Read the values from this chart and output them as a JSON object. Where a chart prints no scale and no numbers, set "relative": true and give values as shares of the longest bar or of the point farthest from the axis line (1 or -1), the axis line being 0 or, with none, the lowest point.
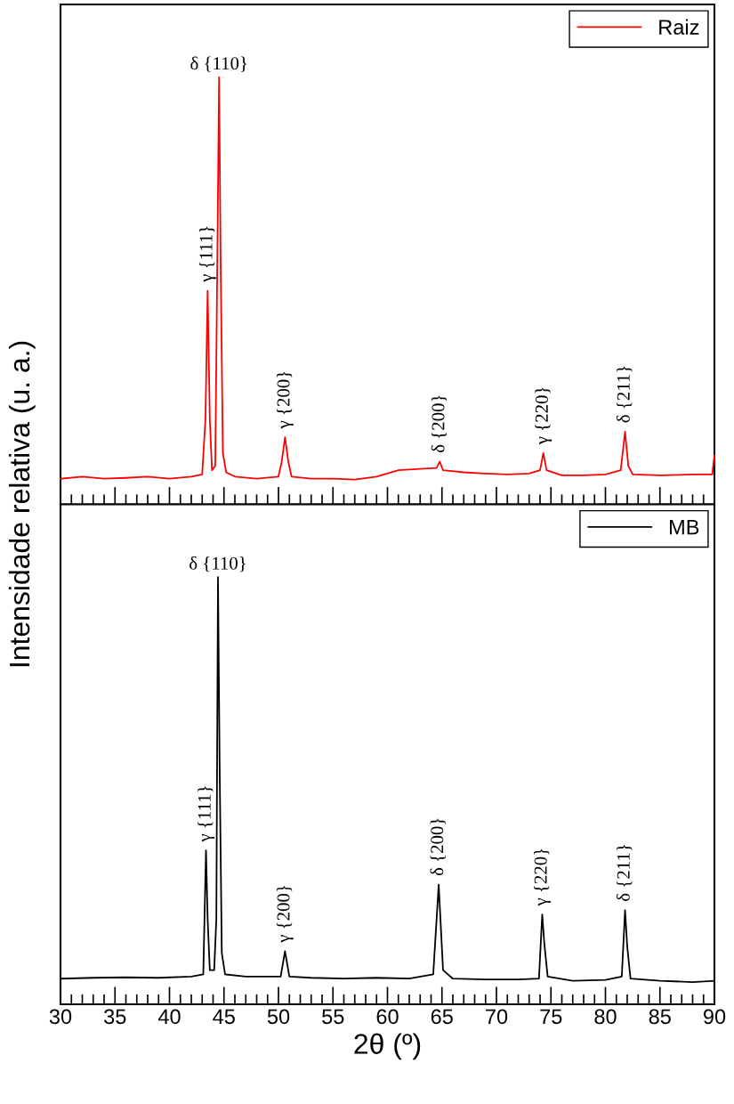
{
  "chart_data": [
    {
      "type": "line",
      "relative": true,
      "ylabel": "Intensidade relativa (u. a.)",
      "xlim": [
        30,
        90
      ],
      "xticks": [
        30,
        35,
        40,
        45,
        50,
        55,
        60,
        65,
        70,
        75,
        80,
        85,
        90
      ],
      "tick_labels": false,
      "legend": "top right",
      "grid": false,
      "series": [
        {
          "name": "Raiz",
          "color": "#ff0000",
          "x": [
            30,
            32,
            34,
            36,
            38,
            40,
            42,
            43.0,
            43.3,
            43.5,
            43.7,
            43.9,
            44.2,
            44.4,
            44.55,
            44.7,
            44.9,
            45.2,
            46,
            48,
            50,
            50.3,
            50.6,
            50.9,
            51.2,
            53,
            55,
            57,
            59,
            61,
            63,
            64.5,
            64.8,
            65.1,
            67,
            69,
            71,
            73,
            74.0,
            74.3,
            74.6,
            76,
            78,
            80,
            81.4,
            81.8,
            82.1,
            82.5,
            85,
            88,
            89.8,
            90
          ],
          "values": [
            0.06,
            0.065,
            0.06,
            0.062,
            0.065,
            0.06,
            0.065,
            0.07,
            0.2,
            0.5,
            0.2,
            0.08,
            0.09,
            0.6,
            1.0,
            0.55,
            0.12,
            0.075,
            0.065,
            0.06,
            0.065,
            0.1,
            0.157,
            0.1,
            0.065,
            0.06,
            0.06,
            0.058,
            0.065,
            0.08,
            0.083,
            0.085,
            0.1,
            0.08,
            0.075,
            0.072,
            0.07,
            0.072,
            0.08,
            0.12,
            0.08,
            0.068,
            0.068,
            0.07,
            0.08,
            0.17,
            0.09,
            0.07,
            0.068,
            0.07,
            0.07,
            0.115
          ]
        }
      ],
      "annotations": [
        {
          "text": "γ {111}",
          "x": 43.5,
          "y": 0.5
        },
        {
          "text": "δ {110}",
          "x": 44.55,
          "y": 1.0
        },
        {
          "text": "γ {200}",
          "x": 50.6,
          "y": 0.157
        },
        {
          "text": "δ {200}",
          "x": 64.8,
          "y": 0.1
        },
        {
          "text": "γ {220}",
          "x": 74.3,
          "y": 0.12
        },
        {
          "text": "δ {211}",
          "x": 81.8,
          "y": 0.17
        }
      ]
    },
    {
      "type": "line",
      "relative": true,
      "xlabel": "2θ (º)",
      "xlim": [
        30,
        90
      ],
      "xticks": [
        30,
        35,
        40,
        45,
        50,
        55,
        60,
        65,
        70,
        75,
        80,
        85,
        90
      ],
      "tick_labels": "x",
      "legend": "top right",
      "grid": false,
      "series": [
        {
          "name": "MB",
          "color": "#000000",
          "x": [
            30,
            33,
            36,
            39,
            42,
            43.1,
            43.35,
            43.5,
            43.7,
            44.1,
            44.3,
            44.45,
            44.6,
            44.8,
            45.1,
            47,
            50.2,
            50.6,
            51.0,
            53,
            56,
            59,
            62,
            64.2,
            64.7,
            65.1,
            66,
            69,
            72,
            73.9,
            74.2,
            74.4,
            74.7,
            77,
            80,
            81.5,
            81.8,
            82.0,
            82.3,
            85,
            88,
            90
          ],
          "values": [
            0.06,
            0.062,
            0.063,
            0.062,
            0.065,
            0.07,
            0.36,
            0.2,
            0.08,
            0.08,
            0.2,
            1.0,
            0.56,
            0.12,
            0.07,
            0.065,
            0.065,
            0.124,
            0.065,
            0.062,
            0.06,
            0.062,
            0.06,
            0.07,
            0.28,
            0.08,
            0.06,
            0.058,
            0.058,
            0.06,
            0.21,
            0.14,
            0.065,
            0.055,
            0.057,
            0.065,
            0.22,
            0.135,
            0.06,
            0.055,
            0.052,
            0.055
          ]
        }
      ],
      "annotations": [
        {
          "text": "γ {111}",
          "x": 43.35,
          "y": 0.36
        },
        {
          "text": "δ {110}",
          "x": 44.45,
          "y": 1.0
        },
        {
          "text": "γ {200}",
          "x": 50.6,
          "y": 0.124
        },
        {
          "text": "δ {200}",
          "x": 64.7,
          "y": 0.28
        },
        {
          "text": "γ {220}",
          "x": 74.2,
          "y": 0.21
        },
        {
          "text": "δ {211}",
          "x": 81.8,
          "y": 0.22
        }
      ]
    }
  ]
}
